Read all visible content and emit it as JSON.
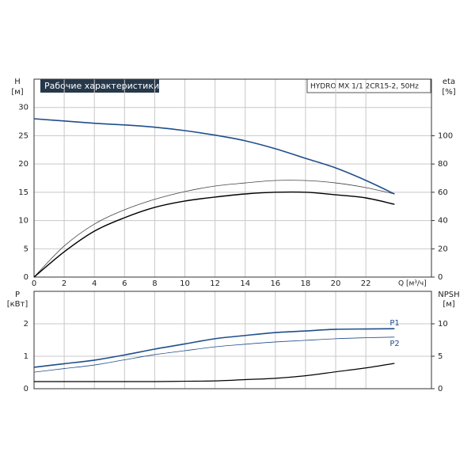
{
  "chart_data": [
    {
      "type": "line",
      "title": "Рабочие характеристики",
      "model": "HYDRO MX 1/1 2CR15-2, 50Hz",
      "ylabel": "H",
      "yunit": "[м]",
      "y2label": "eta",
      "y2unit": "[%]",
      "xlabel": "Q [м³/ч]",
      "x": [
        0,
        2,
        4,
        6,
        8,
        10,
        12,
        14,
        16,
        18,
        20,
        22,
        23.9
      ],
      "xlim": [
        0,
        26.35
      ],
      "xticks": [
        0,
        2,
        4,
        6,
        8,
        10,
        12,
        14,
        16,
        18,
        20,
        22
      ],
      "ylim": [
        0,
        35
      ],
      "yticks": [
        0,
        5,
        10,
        15,
        20,
        25,
        30
      ],
      "y2lim": [
        0,
        140
      ],
      "y2ticks": [
        0,
        20,
        40,
        60,
        80,
        100
      ],
      "grid": true,
      "series": [
        {
          "color": "#1f4e8c",
          "width": 1.6,
          "values": [
            28,
            27.6,
            27.2,
            26.9,
            26.5,
            25.9,
            25.1,
            24.1,
            22.7,
            21,
            19.3,
            17.1,
            14.7
          ]
        },
        {
          "color": "#444444",
          "width": 0.8,
          "axis": "y2",
          "values": [
            0,
            22,
            37.5,
            47.6,
            55,
            60.5,
            64.4,
            66.6,
            68.3,
            68.3,
            66.6,
            63.3,
            58.8
          ]
        },
        {
          "color": "#000000",
          "width": 1.4,
          "axis": "y2",
          "values": [
            0,
            17.9,
            32.5,
            42,
            49.3,
            53.8,
            56.6,
            58.8,
            60,
            60,
            58.2,
            56,
            51.5
          ]
        }
      ]
    },
    {
      "type": "line",
      "ylabel": "P",
      "yunit": "[кВт]",
      "y2label": "NPSH",
      "y2unit": "[м]",
      "x": [
        0,
        2,
        4,
        6,
        8,
        10,
        12,
        14,
        16,
        18,
        20,
        22,
        23.9
      ],
      "xlim": [
        0,
        26.35
      ],
      "xticks": [
        0,
        2,
        4,
        6,
        8,
        10,
        12,
        14,
        16,
        18,
        20,
        22
      ],
      "ylim": [
        0,
        3
      ],
      "yticks": [
        0,
        1,
        2
      ],
      "y2lim": [
        0,
        15
      ],
      "y2ticks": [
        0,
        5,
        10
      ],
      "grid": true,
      "series": [
        {
          "name": "P1",
          "color": "#1f4e8c",
          "width": 1.6,
          "values": [
            0.66,
            0.77,
            0.88,
            1.04,
            1.22,
            1.38,
            1.54,
            1.64,
            1.73,
            1.78,
            1.83,
            1.84,
            1.85
          ]
        },
        {
          "name": "P2",
          "color": "#1f4e8c",
          "width": 0.8,
          "values": [
            0.51,
            0.62,
            0.73,
            0.89,
            1.05,
            1.17,
            1.29,
            1.37,
            1.44,
            1.49,
            1.54,
            1.57,
            1.59
          ]
        },
        {
          "name": "NPSH",
          "color": "#000000",
          "width": 1.2,
          "axis": "y2",
          "values": [
            1.1,
            1.1,
            1.1,
            1.1,
            1.1,
            1.15,
            1.2,
            1.4,
            1.6,
            2,
            2.6,
            3.2,
            3.9
          ]
        }
      ]
    }
  ]
}
